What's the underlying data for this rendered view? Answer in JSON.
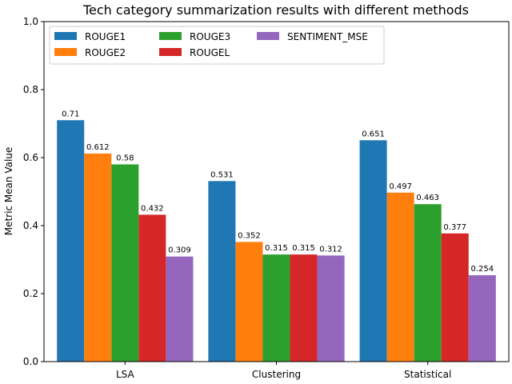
{
  "chart_data": {
    "type": "bar",
    "title": "Tech category summarization results with different methods",
    "xlabel": "",
    "ylabel": "Metric Mean Value",
    "ylim": [
      0,
      1.0
    ],
    "yticks": [
      "0.0",
      "0.2",
      "0.4",
      "0.6",
      "0.8",
      "1.0"
    ],
    "categories": [
      "LSA",
      "Clustering",
      "Statistical"
    ],
    "series": [
      {
        "name": "ROUGE1",
        "color": "#1f77b4",
        "values": [
          0.71,
          0.531,
          0.651
        ],
        "labels": [
          "0.71",
          "0.531",
          "0.651"
        ]
      },
      {
        "name": "ROUGE2",
        "color": "#ff7f0e",
        "values": [
          0.612,
          0.352,
          0.497
        ],
        "labels": [
          "0.612",
          "0.352",
          "0.497"
        ]
      },
      {
        "name": "ROUGE3",
        "color": "#2ca02c",
        "values": [
          0.58,
          0.315,
          0.463
        ],
        "labels": [
          "0.58",
          "0.315",
          "0.463"
        ]
      },
      {
        "name": "ROUGEL",
        "color": "#d62728",
        "values": [
          0.432,
          0.315,
          0.377
        ],
        "labels": [
          "0.432",
          "0.315",
          "0.377"
        ]
      },
      {
        "name": "SENTIMENT_MSE",
        "color": "#9467bd",
        "values": [
          0.309,
          0.312,
          0.254
        ],
        "labels": [
          "0.309",
          "0.312",
          "0.254"
        ]
      }
    ],
    "legend_position": "top-left",
    "grid": false
  }
}
